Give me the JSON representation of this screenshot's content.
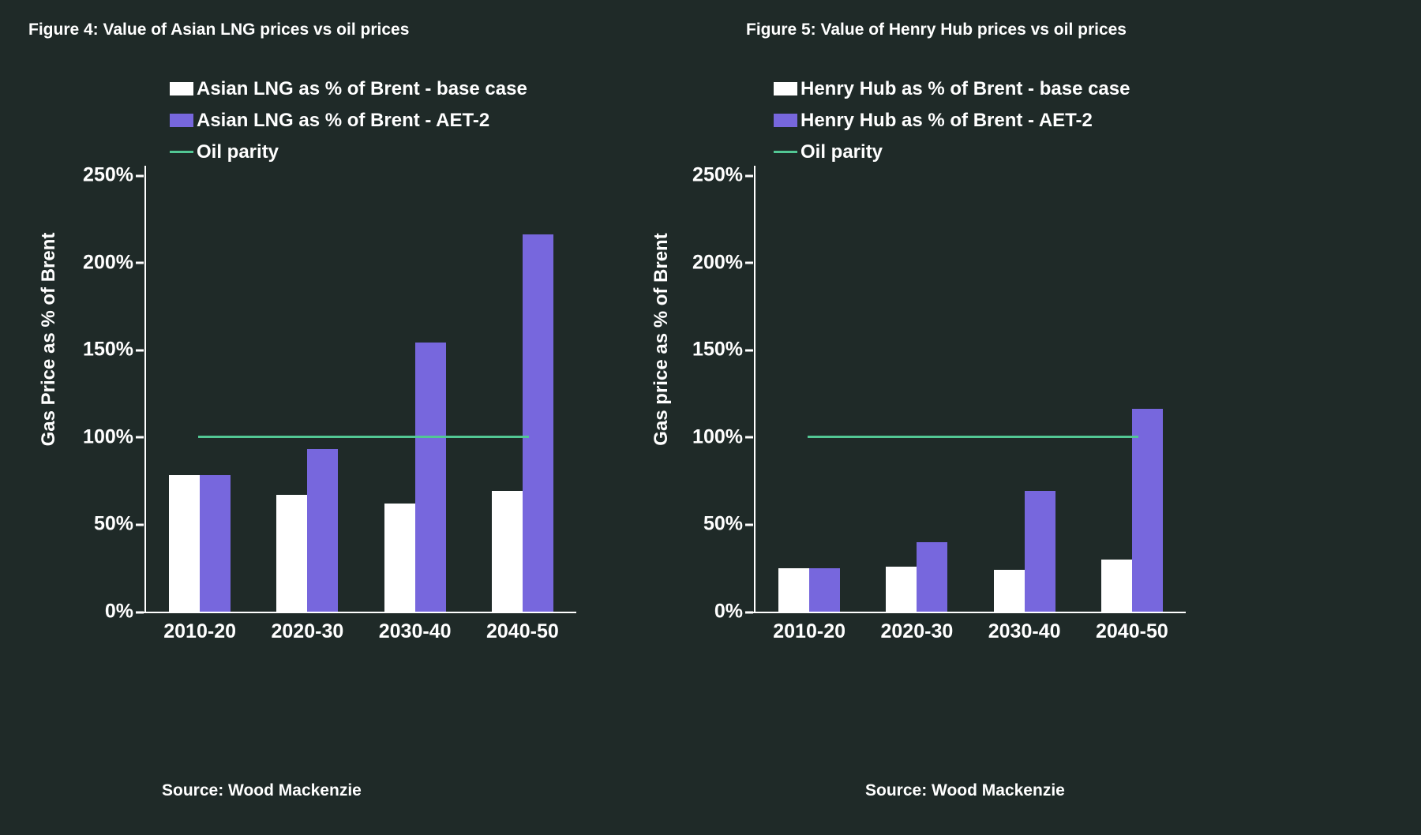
{
  "page": {
    "background": "#1f2a28",
    "text_color": "#ffffff"
  },
  "chart_data": [
    {
      "type": "bar",
      "title": "Figure 4: Value of Asian LNG prices vs oil prices",
      "ylabel": "Gas Price as % of Brent",
      "categories": [
        "2010-20",
        "2020-30",
        "2030-40",
        "2040-50"
      ],
      "series": [
        {
          "name": "Asian LNG as % of Brent - base case",
          "color": "#ffffff",
          "values": [
            78,
            67,
            62,
            69
          ]
        },
        {
          "name": "Asian LNG as % of Brent - AET-2",
          "color": "#7767dd",
          "values": [
            78,
            93,
            154,
            216
          ]
        }
      ],
      "reference_line": {
        "label": "Oil parity",
        "value": 100,
        "color": "#52c794"
      },
      "ylim": [
        0,
        250
      ],
      "yticks": [
        0,
        50,
        100,
        150,
        200,
        250
      ],
      "ytick_suffix": "%",
      "legend_position": "top",
      "grid": false,
      "source": "Source: Wood Mackenzie"
    },
    {
      "type": "bar",
      "title": "Figure 5: Value of Henry Hub prices vs oil prices",
      "ylabel": "Gas price as % of Brent",
      "categories": [
        "2010-20",
        "2020-30",
        "2030-40",
        "2040-50"
      ],
      "series": [
        {
          "name": "Henry Hub as % of Brent - base case",
          "color": "#ffffff",
          "values": [
            25,
            26,
            24,
            30
          ]
        },
        {
          "name": "Henry Hub as % of Brent - AET-2",
          "color": "#7767dd",
          "values": [
            25,
            40,
            69,
            116
          ]
        }
      ],
      "reference_line": {
        "label": "Oil parity",
        "value": 100,
        "color": "#52c794"
      },
      "ylim": [
        0,
        250
      ],
      "yticks": [
        0,
        50,
        100,
        150,
        200,
        250
      ],
      "ytick_suffix": "%",
      "legend_position": "top",
      "grid": false,
      "source": "Source: Wood Mackenzie"
    }
  ]
}
